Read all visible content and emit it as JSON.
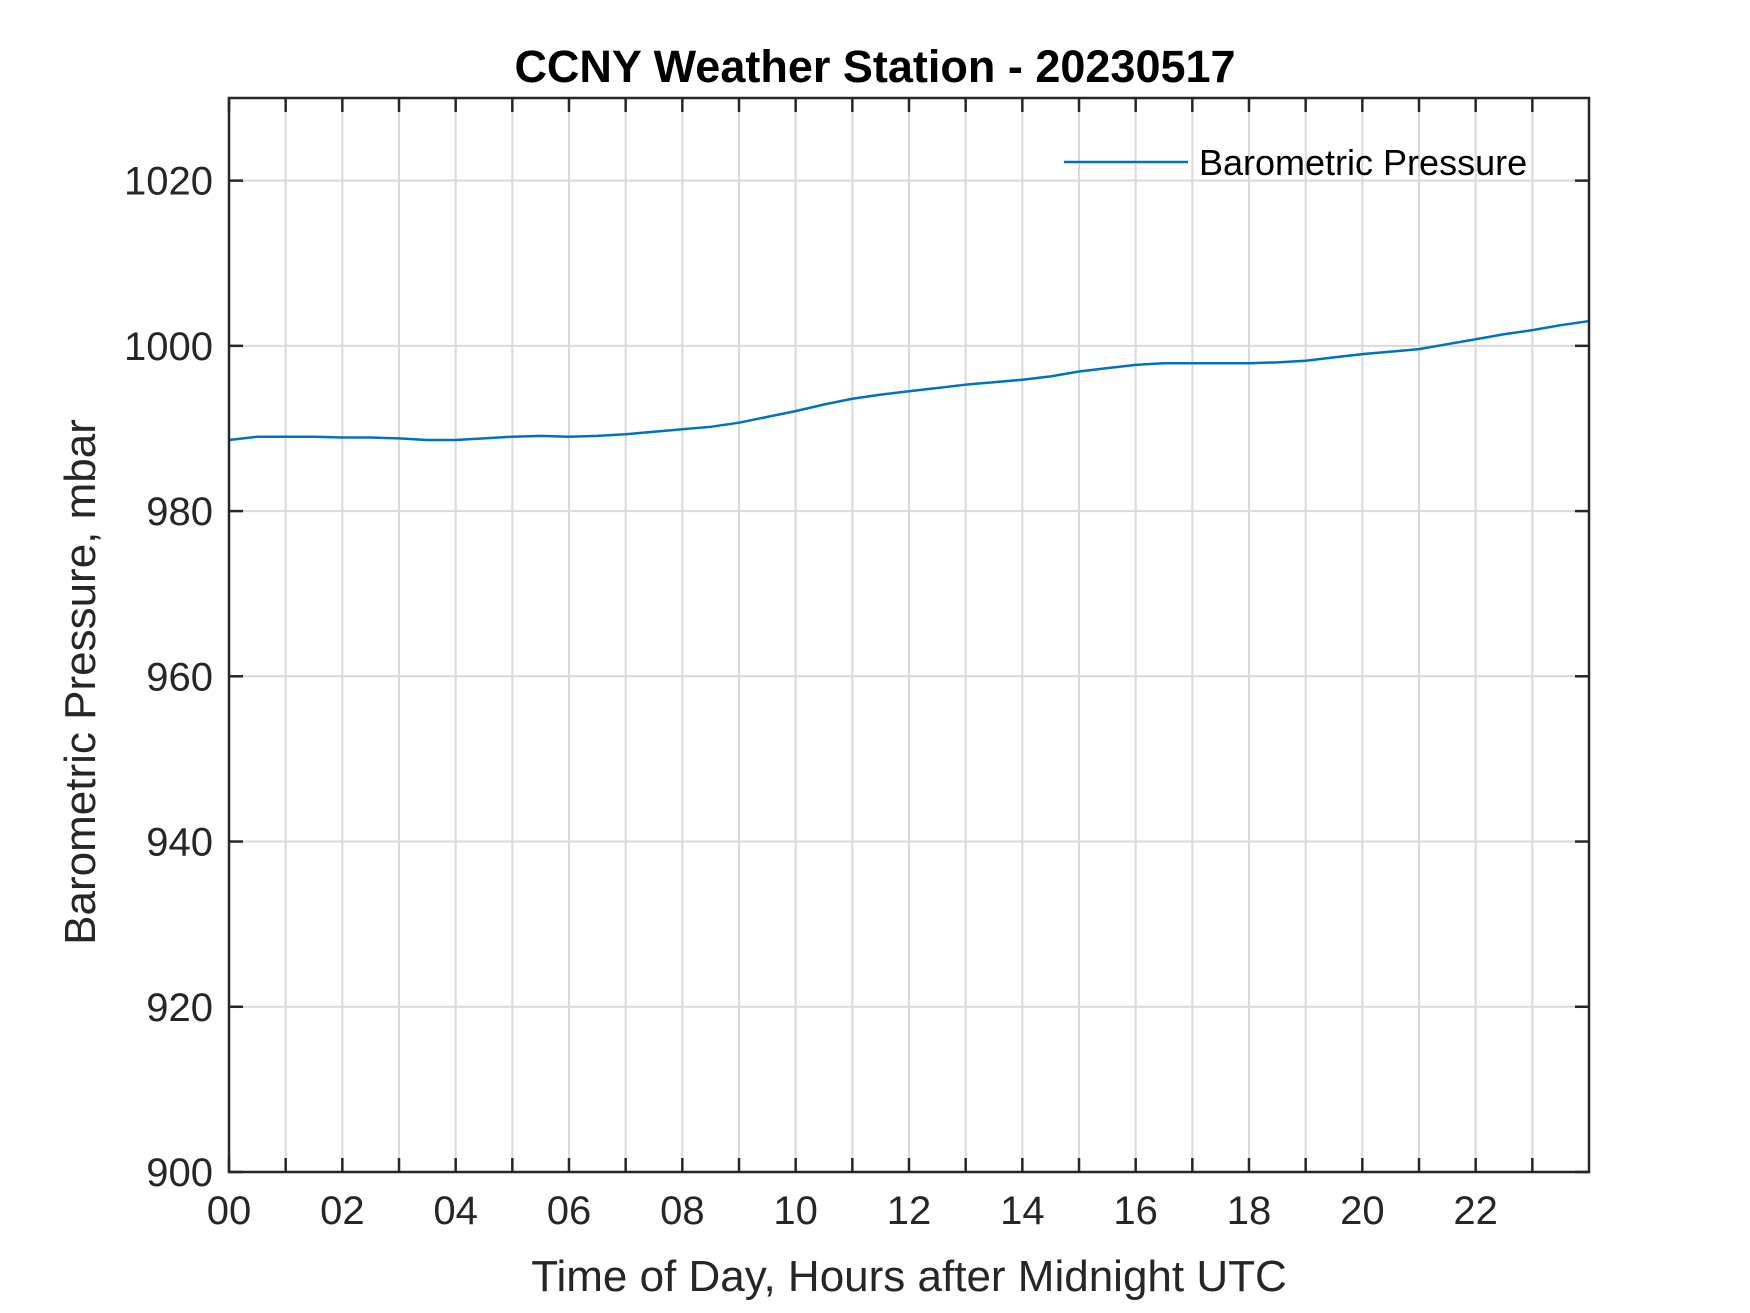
{
  "chart_data": {
    "type": "line",
    "title": "CCNY Weather Station - 20230517",
    "xlabel": "Time of Day, Hours after Midnight UTC",
    "ylabel": "Barometric Pressure, mbar",
    "xlim": [
      0,
      24
    ],
    "ylim": [
      900,
      1030
    ],
    "x_ticks": [
      0,
      2,
      4,
      6,
      8,
      10,
      12,
      14,
      16,
      18,
      20,
      22
    ],
    "x_tick_labels": [
      "00",
      "02",
      "04",
      "06",
      "08",
      "10",
      "12",
      "14",
      "16",
      "18",
      "20",
      "22"
    ],
    "x_minor_grid_step": 1,
    "y_ticks": [
      900,
      920,
      940,
      960,
      980,
      1000,
      1020
    ],
    "y_tick_labels": [
      "900",
      "920",
      "940",
      "960",
      "980",
      "1000",
      "1020"
    ],
    "grid": true,
    "legend_position": "top-right",
    "series": [
      {
        "name": "Barometric Pressure",
        "color": "#0072BD",
        "x": [
          0,
          0.5,
          1,
          1.5,
          2,
          2.5,
          3,
          3.5,
          4,
          4.5,
          5,
          5.5,
          6,
          6.5,
          7,
          7.5,
          8,
          8.5,
          9,
          9.5,
          10,
          10.5,
          11,
          11.5,
          12,
          12.5,
          13,
          13.5,
          14,
          14.5,
          15,
          15.5,
          16,
          16.5,
          17,
          17.5,
          18,
          18.5,
          19,
          19.5,
          20,
          20.5,
          21,
          21.5,
          22,
          22.5,
          23,
          23.5,
          24
        ],
        "y": [
          988.6,
          989.0,
          989.0,
          989.0,
          988.9,
          988.9,
          988.8,
          988.6,
          988.6,
          988.8,
          989.0,
          989.1,
          989.0,
          989.1,
          989.3,
          989.6,
          989.9,
          990.2,
          990.7,
          991.4,
          992.1,
          992.9,
          993.6,
          994.1,
          994.5,
          994.9,
          995.3,
          995.6,
          995.9,
          996.3,
          996.9,
          997.3,
          997.7,
          997.9,
          997.9,
          997.9,
          997.9,
          998.0,
          998.2,
          998.6,
          999.0,
          999.3,
          999.6,
          1000.2,
          1000.8,
          1001.4,
          1001.9,
          1002.5,
          1003.0
        ]
      }
    ]
  }
}
